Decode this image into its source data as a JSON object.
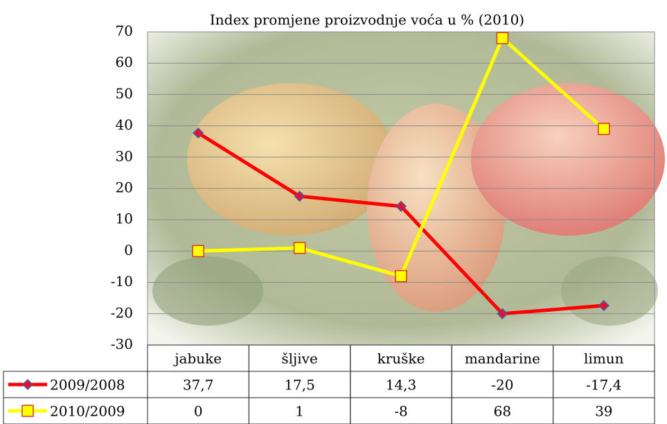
{
  "chart_data": {
    "type": "line",
    "title": "Index promjene proizvodnje voća u % (2010)",
    "categories": [
      "jabuke",
      "šljive",
      "kruške",
      "mandarine",
      "limun"
    ],
    "series": [
      {
        "name": "2009/2008",
        "color": "#ff0000",
        "marker": "diamond",
        "marker_color": "#e8102a",
        "values": [
          37.7,
          17.5,
          14.3,
          -20,
          -17.4
        ],
        "value_labels": [
          "37,7",
          "17,5",
          "14,3",
          "-20",
          "-17,4"
        ]
      },
      {
        "name": "2010/2009",
        "color": "#ffff00",
        "marker": "square",
        "marker_color": "#ffff00",
        "values": [
          0,
          1,
          -8,
          68,
          39
        ]
      }
    ],
    "ylim": [
      -30,
      70
    ],
    "yticks": [
      -30,
      -20,
      -10,
      0,
      10,
      20,
      30,
      40,
      50,
      60,
      70
    ],
    "grid": true,
    "data_table": true
  }
}
